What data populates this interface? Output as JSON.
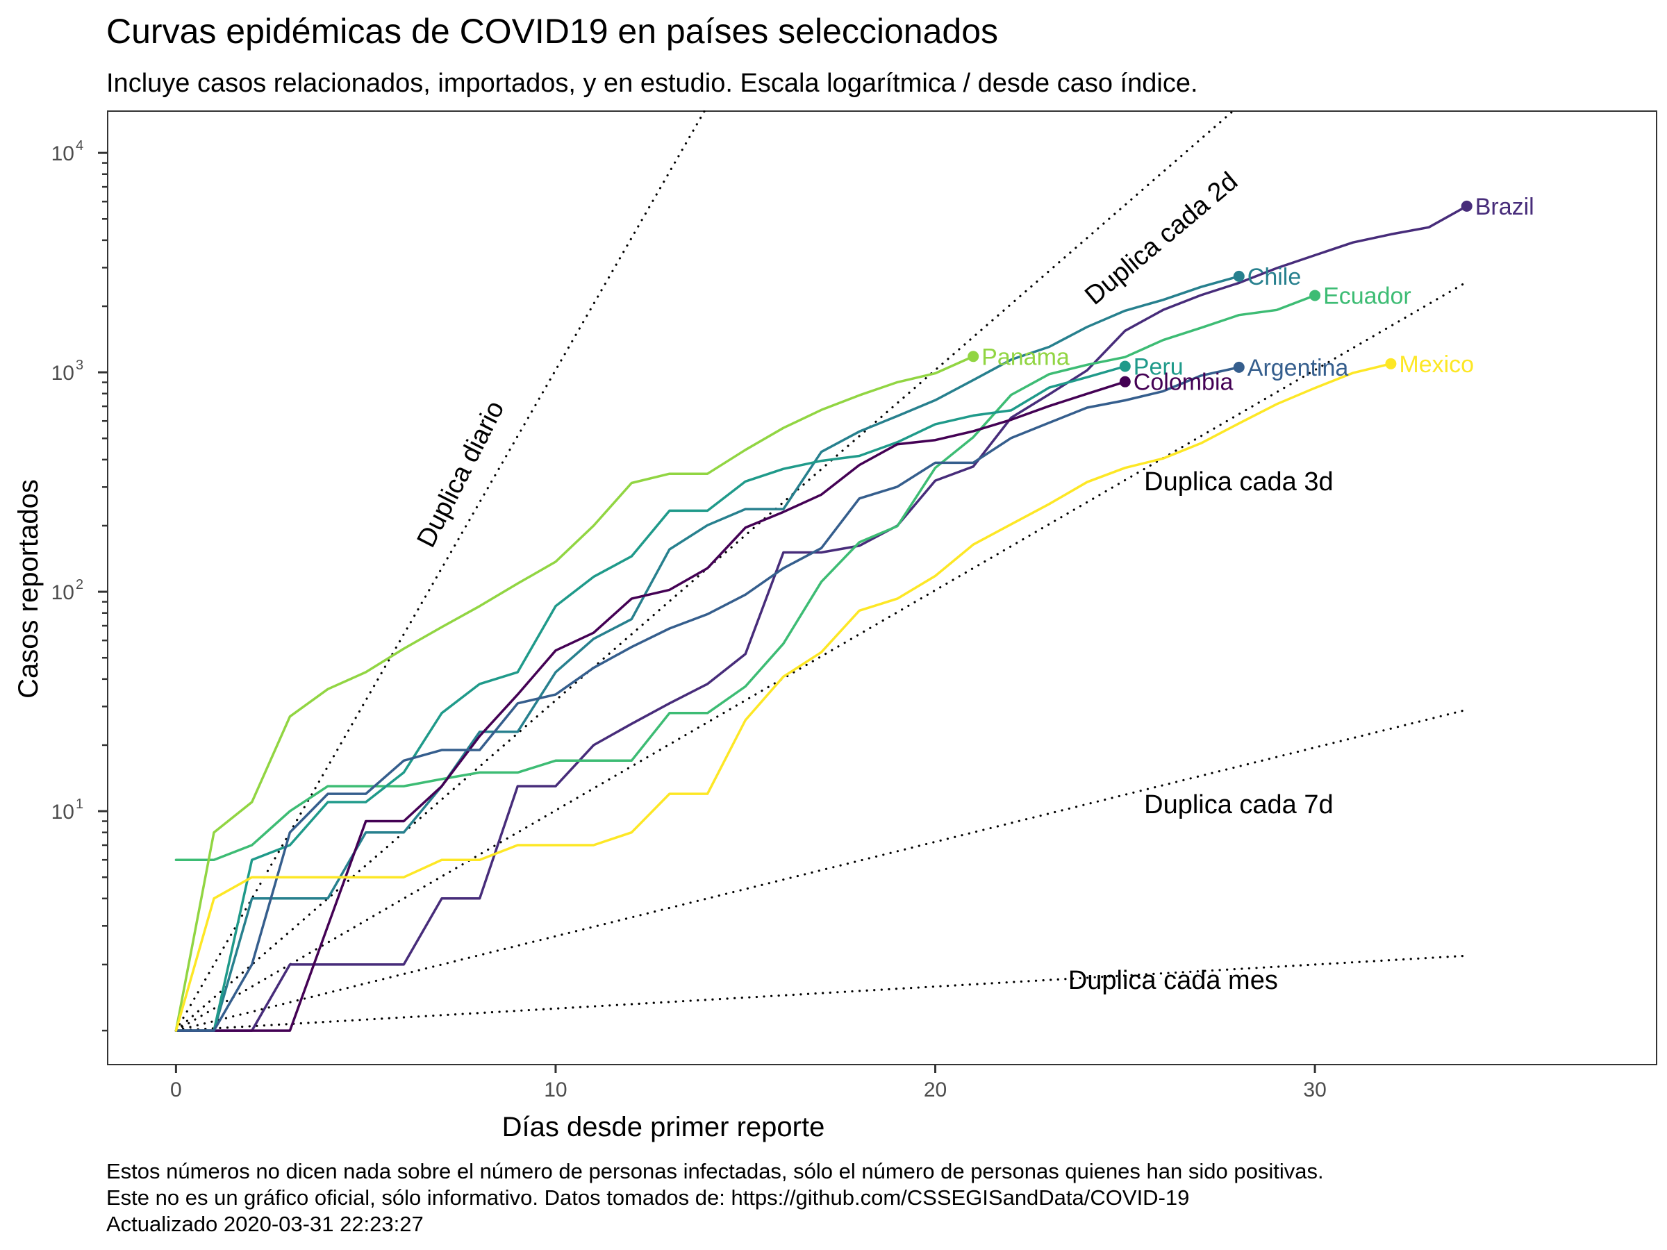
{
  "chart_data": {
    "type": "line",
    "title": "Curvas epidémicas de COVID19 en países seleccionados",
    "subtitle": "Incluye casos relacionados, importados, y en estudio. Escala logarítmica / desde caso índice.",
    "xlabel": "Días desde primer reporte",
    "ylabel": "Casos reportados",
    "xlim": [
      -1.8,
      39
    ],
    "ylim": [
      0.7,
      15500
    ],
    "y_scale": "log10",
    "grid": false,
    "x_ticks": [
      0,
      10,
      20,
      30
    ],
    "y_ticks": [
      {
        "value": 10000,
        "base": "10",
        "exp": "4"
      },
      {
        "value": 1000,
        "base": "10",
        "exp": "3"
      },
      {
        "value": 100,
        "base": "10",
        "exp": "2"
      },
      {
        "value": 10,
        "base": "10",
        "exp": "1"
      }
    ],
    "y_minor_ticks": [
      1,
      2,
      3,
      4,
      5,
      6,
      7,
      8,
      9,
      20,
      30,
      40,
      50,
      60,
      70,
      80,
      90,
      200,
      300,
      400,
      500,
      600,
      700,
      800,
      900,
      2000,
      3000,
      4000,
      5000,
      6000,
      7000,
      8000,
      9000
    ],
    "reference_lines": [
      {
        "label": "Duplica diario",
        "doubling_days": 1,
        "label_x": 7.7,
        "label_y": 330,
        "angle": -63
      },
      {
        "label": "Duplica cada 2d",
        "doubling_days": 2,
        "label_x": 26.1,
        "label_y": 3800,
        "angle": -40
      },
      {
        "label": "Duplica cada 3d",
        "doubling_days": 3,
        "label_x": 25.5,
        "label_y": 290,
        "align": "start"
      },
      {
        "label": "Duplica cada 7d",
        "doubling_days": 7,
        "label_x": 25.5,
        "label_y": 9.8,
        "align": "start"
      },
      {
        "label": "Duplica cada mes",
        "doubling_days": 30,
        "label_x": 23.5,
        "label_y": 1.55,
        "align": "start"
      }
    ],
    "reference_x_end": 34,
    "series": [
      {
        "name": "Brazil",
        "color": "#472C7A",
        "x": [
          0,
          1,
          2,
          3,
          4,
          5,
          6,
          7,
          8,
          9,
          10,
          11,
          12,
          13,
          14,
          15,
          16,
          17,
          18,
          19,
          20,
          21,
          22,
          23,
          24,
          25,
          26,
          27,
          28,
          29,
          30,
          31,
          32,
          33,
          34
        ],
        "y": [
          1,
          1,
          1,
          2,
          2,
          2,
          2,
          4,
          4,
          13,
          13,
          20,
          25,
          31,
          38,
          52,
          151,
          151,
          162,
          200,
          321,
          372,
          621,
          793,
          1021,
          1546,
          1924,
          2247,
          2554,
          2985,
          3417,
          3904,
          4256,
          4579,
          5717
        ]
      },
      {
        "name": "Chile",
        "color": "#27808E",
        "x": [
          0,
          1,
          2,
          3,
          4,
          5,
          6,
          7,
          8,
          9,
          10,
          11,
          12,
          13,
          14,
          15,
          16,
          17,
          18,
          19,
          20,
          21,
          22,
          23,
          24,
          25,
          26,
          27,
          28
        ],
        "y": [
          1,
          1,
          4,
          4,
          4,
          8,
          8,
          13,
          23,
          23,
          43,
          61,
          75,
          156,
          201,
          238,
          238,
          434,
          537,
          632,
          746,
          922,
          1142,
          1306,
          1610,
          1909,
          2139,
          2449,
          2738
        ]
      },
      {
        "name": "Ecuador",
        "color": "#3DBC74",
        "x": [
          0,
          1,
          2,
          3,
          4,
          5,
          6,
          7,
          8,
          9,
          10,
          11,
          12,
          13,
          14,
          15,
          16,
          17,
          18,
          19,
          20,
          21,
          22,
          23,
          24,
          25,
          26,
          27,
          28,
          29,
          30
        ],
        "y": [
          6,
          6,
          7,
          10,
          13,
          13,
          13,
          14,
          15,
          15,
          17,
          17,
          17,
          28,
          28,
          37,
          58,
          111,
          168,
          199,
          367,
          506,
          789,
          981,
          1082,
          1173,
          1403,
          1595,
          1823,
          1924,
          2240
        ]
      },
      {
        "name": "Panama",
        "color": "#91D542",
        "x": [
          0,
          1,
          2,
          3,
          4,
          5,
          6,
          7,
          8,
          9,
          10,
          11,
          12,
          13,
          14,
          15,
          16,
          17,
          18,
          19,
          20,
          21
        ],
        "y": [
          1,
          8,
          11,
          27,
          36,
          43,
          55,
          69,
          86,
          109,
          137,
          200,
          313,
          345,
          345,
          443,
          558,
          674,
          786,
          901,
          989,
          1181
        ]
      },
      {
        "name": "Peru",
        "color": "#1F9A8A",
        "x": [
          0,
          1,
          2,
          3,
          4,
          5,
          6,
          7,
          8,
          9,
          10,
          11,
          12,
          13,
          14,
          15,
          16,
          17,
          18,
          19,
          20,
          21,
          22,
          23,
          24,
          25
        ],
        "y": [
          1,
          1,
          6,
          7,
          11,
          11,
          15,
          28,
          38,
          43,
          86,
          117,
          145,
          234,
          234,
          318,
          363,
          395,
          416,
          480,
          580,
          635,
          671,
          852,
          950,
          1065
        ]
      },
      {
        "name": "Colombia",
        "color": "#440154",
        "x": [
          0,
          1,
          2,
          3,
          4,
          5,
          6,
          7,
          8,
          9,
          10,
          11,
          12,
          13,
          14,
          15,
          16,
          17,
          18,
          19,
          20,
          21,
          22,
          23,
          24,
          25
        ],
        "y": [
          1,
          1,
          1,
          1,
          3,
          9,
          9,
          13,
          22,
          34,
          54,
          65,
          93,
          102,
          128,
          196,
          231,
          277,
          378,
          470,
          491,
          539,
          608,
          702,
          798,
          906
        ]
      },
      {
        "name": "Argentina",
        "color": "#355E8D",
        "x": [
          0,
          1,
          2,
          3,
          4,
          5,
          6,
          7,
          8,
          9,
          10,
          11,
          12,
          13,
          14,
          15,
          16,
          17,
          18,
          19,
          20,
          21,
          22,
          23,
          24,
          25,
          26,
          27,
          28
        ],
        "y": [
          1,
          1,
          2,
          8,
          12,
          12,
          17,
          19,
          19,
          31,
          34,
          45,
          56,
          68,
          79,
          97,
          128,
          158,
          266,
          301,
          387,
          387,
          502,
          589,
          690,
          745,
          820,
          966,
          1054
        ]
      },
      {
        "name": "Mexico",
        "color": "#FDE725",
        "x": [
          0,
          1,
          2,
          3,
          4,
          5,
          6,
          7,
          8,
          9,
          10,
          11,
          12,
          13,
          14,
          15,
          16,
          17,
          18,
          19,
          20,
          21,
          22,
          23,
          24,
          25,
          26,
          27,
          28,
          29,
          30,
          31,
          32
        ],
        "y": [
          1,
          4,
          5,
          5,
          5,
          5,
          5,
          6,
          6,
          7,
          7,
          7,
          8,
          12,
          12,
          26,
          41,
          53,
          82,
          93,
          118,
          164,
          203,
          251,
          316,
          367,
          405,
          475,
          585,
          717,
          848,
          993,
          1094
        ]
      }
    ]
  },
  "caption": {
    "line1": "Estos números no dicen nada sobre el número de personas infectadas, sólo el número de personas quienes han sido positivas.",
    "line2": "Este no es un gráfico oficial, sólo informativo. Datos tomados de: https://github.com/CSSEGISandData/COVID-19",
    "line3": "Actualizado 2020-03-31 22:23:27"
  }
}
